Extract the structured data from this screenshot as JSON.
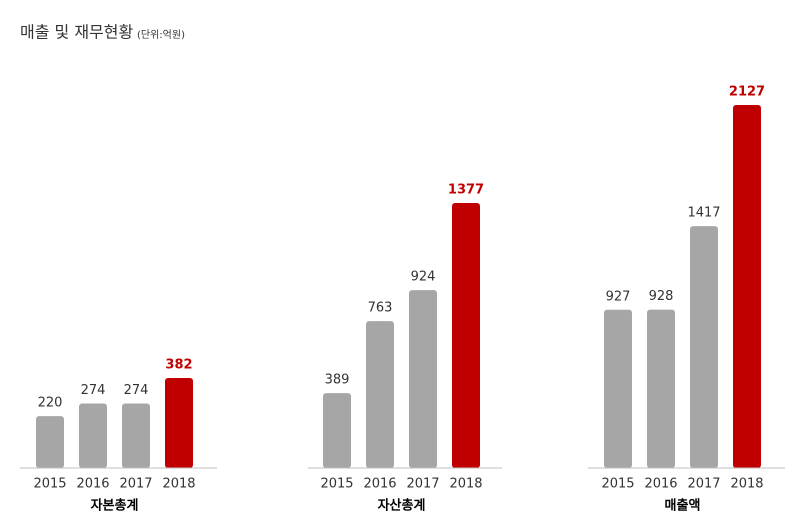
{
  "header": {
    "title": "매출 및 재무현황",
    "unit": "(단위:억원)"
  },
  "chart_data": [
    {
      "type": "bar",
      "xlabel": "자본총계",
      "categories": [
        "2015",
        "2016",
        "2017",
        "2018"
      ],
      "values": [
        220,
        274,
        274,
        382
      ],
      "colors": [
        "#a6a6a6",
        "#a6a6a6",
        "#a6a6a6",
        "#c00000"
      ]
    },
    {
      "type": "bar",
      "xlabel": "자산총계",
      "categories": [
        "2015",
        "2016",
        "2017",
        "2018"
      ],
      "values": [
        389,
        763,
        924,
        1377
      ],
      "colors": [
        "#a6a6a6",
        "#a6a6a6",
        "#a6a6a6",
        "#c00000"
      ]
    },
    {
      "type": "bar",
      "xlabel": "매출액",
      "categories": [
        "2015",
        "2016",
        "2017",
        "2018"
      ],
      "values": [
        927,
        928,
        1417,
        2127
      ],
      "colors": [
        "#a6a6a6",
        "#a6a6a6",
        "#a6a6a6",
        "#c00000"
      ]
    }
  ]
}
